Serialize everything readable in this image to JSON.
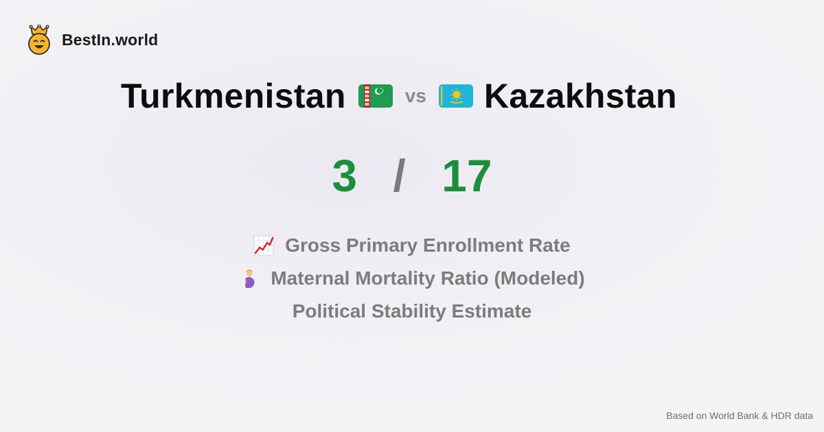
{
  "brand": {
    "name": "BestIn.world",
    "logo_icon": "crowned-smiley-icon"
  },
  "comparison": {
    "left": {
      "country": "Turkmenistan",
      "flag_icon": "turkmenistan-flag-icon",
      "score": "3"
    },
    "vs_label": "vs",
    "right": {
      "country": "Kazakhstan",
      "flag_icon": "kazakhstan-flag-icon",
      "score": "17"
    },
    "score_separator": "/"
  },
  "metrics": [
    {
      "label": "Gross Primary Enrollment Rate",
      "icon": "chart-increasing-icon"
    },
    {
      "label": "Maternal Mortality Ratio (Modeled)",
      "icon": "pregnant-woman-icon"
    },
    {
      "label": "Political Stability Estimate",
      "icon": ""
    }
  ],
  "footer": {
    "source_note": "Based on World Bank & HDR data"
  },
  "colors": {
    "score_green": "#1b8f3a",
    "muted_gray": "#7c7c7c",
    "turkmenistan_green": "#1e9c50",
    "kazakhstan_blue": "#20b4d8",
    "logo_yellow": "#f6b42a"
  }
}
